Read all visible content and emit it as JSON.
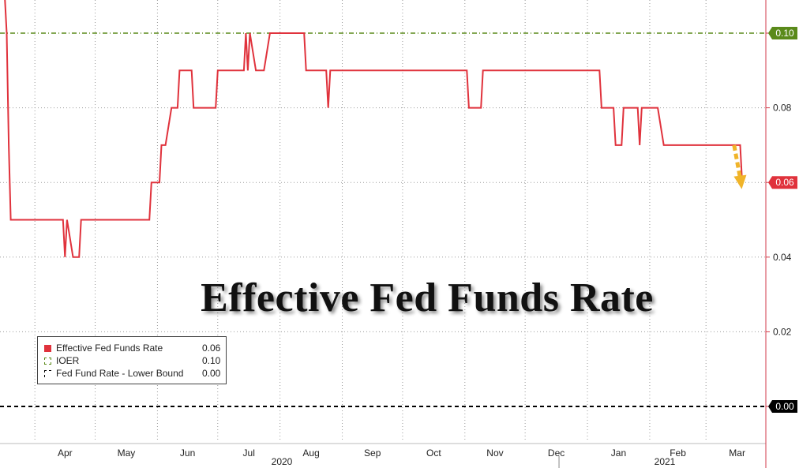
{
  "chart_data": {
    "type": "line",
    "title": "Effective Fed Funds Rate",
    "ylim": [
      -0.01,
      0.11
    ],
    "y_ticks": [
      "0.00",
      "0.02",
      "0.04",
      "0.06",
      "0.08",
      "0.10"
    ],
    "x_ticks": [
      "Apr",
      "May",
      "Jun",
      "Jul",
      "Aug",
      "Sep",
      "Oct",
      "Nov",
      "Dec",
      "Jan",
      "Feb",
      "Mar"
    ],
    "years": [
      "2020",
      "2021"
    ],
    "grid": true,
    "legend_placement": "bottom-left",
    "series": [
      {
        "name": "Effective Fed Funds Rate",
        "last_value": "0.06",
        "color": "#e0323c",
        "style": "solid",
        "points": [
          [
            "2020-03-17",
            0.11
          ],
          [
            "2020-03-18",
            0.1
          ],
          [
            "2020-03-19",
            0.07
          ],
          [
            "2020-03-20",
            0.05
          ],
          [
            "2020-04-15",
            0.05
          ],
          [
            "2020-04-16",
            0.04
          ],
          [
            "2020-04-17",
            0.05
          ],
          [
            "2020-04-20",
            0.04
          ],
          [
            "2020-04-23",
            0.04
          ],
          [
            "2020-04-24",
            0.05
          ],
          [
            "2020-05-28",
            0.05
          ],
          [
            "2020-05-29",
            0.06
          ],
          [
            "2020-06-02",
            0.06
          ],
          [
            "2020-06-03",
            0.07
          ],
          [
            "2020-06-05",
            0.07
          ],
          [
            "2020-06-08",
            0.08
          ],
          [
            "2020-06-11",
            0.08
          ],
          [
            "2020-06-12",
            0.09
          ],
          [
            "2020-06-18",
            0.09
          ],
          [
            "2020-06-19",
            0.08
          ],
          [
            "2020-06-30",
            0.08
          ],
          [
            "2020-07-01",
            0.09
          ],
          [
            "2020-07-14",
            0.09
          ],
          [
            "2020-07-15",
            0.1
          ],
          [
            "2020-07-16",
            0.09
          ],
          [
            "2020-07-17",
            0.1
          ],
          [
            "2020-07-20",
            0.09
          ],
          [
            "2020-07-24",
            0.09
          ],
          [
            "2020-07-27",
            0.1
          ],
          [
            "2020-08-13",
            0.1
          ],
          [
            "2020-08-14",
            0.09
          ],
          [
            "2020-08-24",
            0.09
          ],
          [
            "2020-08-25",
            0.08
          ],
          [
            "2020-08-26",
            0.09
          ],
          [
            "2020-11-02",
            0.09
          ],
          [
            "2020-11-03",
            0.08
          ],
          [
            "2020-11-09",
            0.08
          ],
          [
            "2020-11-10",
            0.09
          ],
          [
            "2021-01-07",
            0.09
          ],
          [
            "2021-01-08",
            0.08
          ],
          [
            "2021-01-14",
            0.08
          ],
          [
            "2021-01-15",
            0.07
          ],
          [
            "2021-01-18",
            0.07
          ],
          [
            "2021-01-19",
            0.08
          ],
          [
            "2021-01-26",
            0.08
          ],
          [
            "2021-01-27",
            0.07
          ],
          [
            "2021-01-28",
            0.08
          ],
          [
            "2021-02-05",
            0.08
          ],
          [
            "2021-02-08",
            0.07
          ],
          [
            "2021-03-18",
            0.07
          ],
          [
            "2021-03-19",
            0.06
          ]
        ]
      },
      {
        "name": "IOER",
        "last_value": "0.10",
        "color": "#5a8a1a",
        "style": "dash-dot",
        "constant": 0.1
      },
      {
        "name": "Fed Fund Rate - Lower Bound",
        "last_value": "0.00",
        "color": "#000000",
        "style": "dashed",
        "constant": 0.0
      }
    ],
    "annotation": {
      "type": "arrow",
      "direction": "down",
      "color": "#f0b429",
      "from": [
        "2021-03-15",
        0.07
      ],
      "to": [
        "2021-03-18",
        0.0595
      ]
    }
  }
}
